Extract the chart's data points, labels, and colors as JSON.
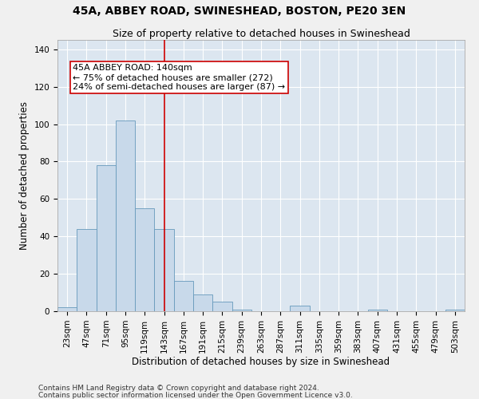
{
  "title": "45A, ABBEY ROAD, SWINESHEAD, BOSTON, PE20 3EN",
  "subtitle": "Size of property relative to detached houses in Swineshead",
  "xlabel": "Distribution of detached houses by size in Swineshead",
  "ylabel": "Number of detached properties",
  "bar_color": "#c8d9ea",
  "bar_edge_color": "#6699bb",
  "background_color": "#dce6f0",
  "grid_color": "#ffffff",
  "fig_bg_color": "#f0f0f0",
  "categories": [
    "23sqm",
    "47sqm",
    "71sqm",
    "95sqm",
    "119sqm",
    "143sqm",
    "167sqm",
    "191sqm",
    "215sqm",
    "239sqm",
    "263sqm",
    "287sqm",
    "311sqm",
    "335sqm",
    "359sqm",
    "383sqm",
    "407sqm",
    "431sqm",
    "455sqm",
    "479sqm",
    "503sqm"
  ],
  "values": [
    2,
    44,
    78,
    102,
    55,
    44,
    16,
    9,
    5,
    1,
    0,
    0,
    3,
    0,
    0,
    0,
    1,
    0,
    0,
    0,
    1
  ],
  "ylim": [
    0,
    145
  ],
  "yticks": [
    0,
    20,
    40,
    60,
    80,
    100,
    120,
    140
  ],
  "vline_x": 5.0,
  "vline_color": "#cc0000",
  "annotation_line1": "45A ABBEY ROAD: 140sqm",
  "annotation_line2": "← 75% of detached houses are smaller (272)",
  "annotation_line3": "24% of semi-detached houses are larger (87) →",
  "footer1": "Contains HM Land Registry data © Crown copyright and database right 2024.",
  "footer2": "Contains public sector information licensed under the Open Government Licence v3.0.",
  "title_fontsize": 10,
  "subtitle_fontsize": 9,
  "label_fontsize": 8.5,
  "tick_fontsize": 7.5,
  "annot_fontsize": 8,
  "footer_fontsize": 6.5
}
